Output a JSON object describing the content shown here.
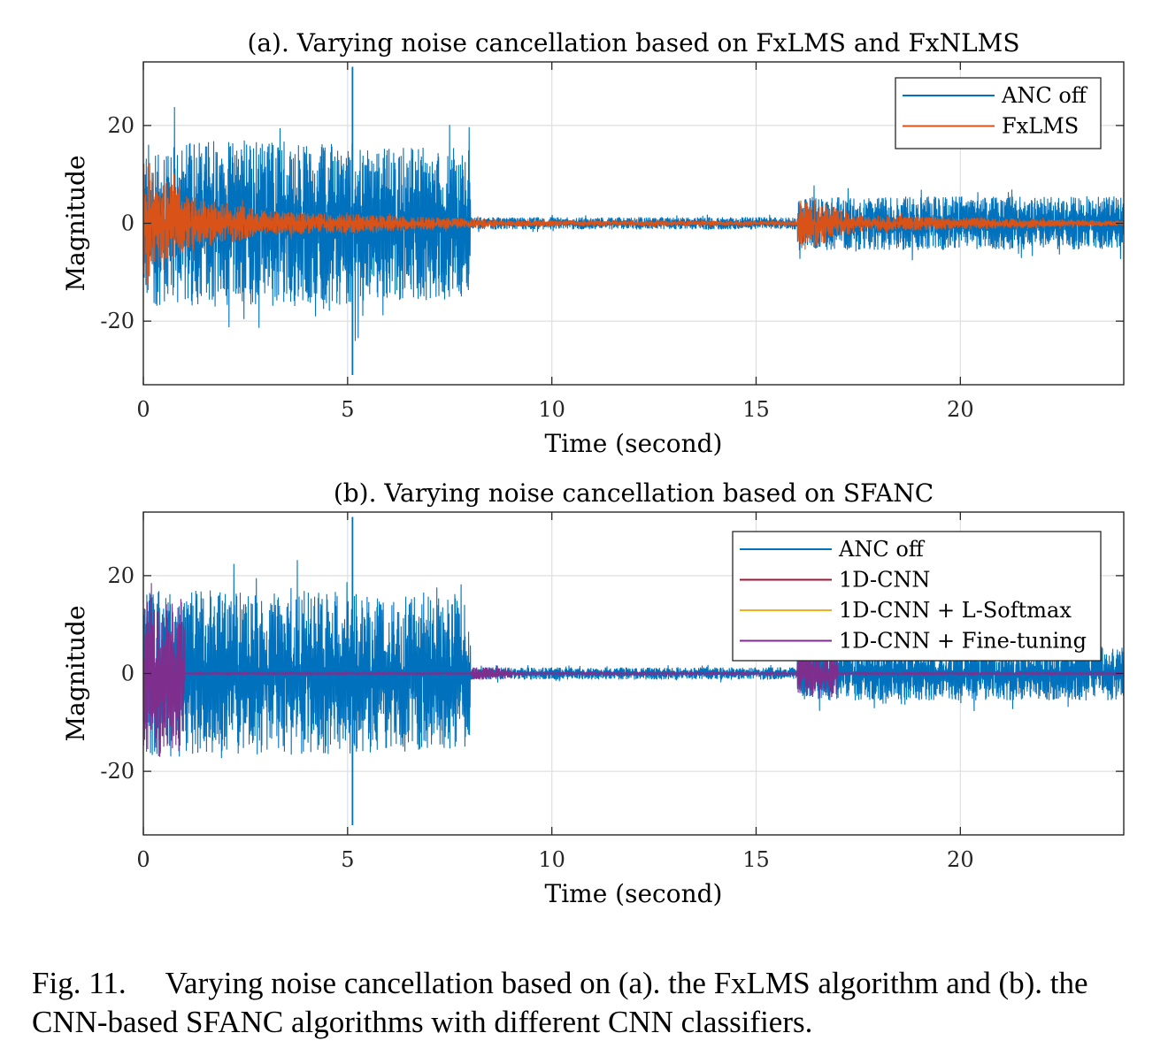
{
  "chart_data": [
    {
      "type": "line",
      "title": "(a). Varying noise cancellation based on FxLMS and FxNLMS",
      "xlabel": "Time (second)",
      "ylabel": "Magnitude",
      "xlim": [
        0,
        24
      ],
      "ylim": [
        -33,
        33
      ],
      "xticks": [
        0,
        5,
        10,
        15,
        20
      ],
      "xtick_labels": [
        "0",
        "5",
        "10",
        "15",
        "20"
      ],
      "yticks": [
        -20,
        0,
        20
      ],
      "ytick_labels": [
        "-20",
        "0",
        "20"
      ],
      "grid": true,
      "legend": "top-right",
      "series": [
        {
          "name": "ANC off",
          "color": "#0072BD",
          "envelope": [
            {
              "t": 0,
              "amp": 20
            },
            {
              "t": 4,
              "amp": 20
            },
            {
              "t": 8,
              "amp": 18
            },
            {
              "t": 8.01,
              "amp": 1.5
            },
            {
              "t": 16,
              "amp": 1.5
            },
            {
              "t": 16.01,
              "amp": 6.5
            },
            {
              "t": 24,
              "amp": 6.5
            }
          ]
        },
        {
          "name": "FxLMS",
          "color": "#D95319",
          "envelope": [
            {
              "t": 0,
              "amp": 16
            },
            {
              "t": 1,
              "amp": 7
            },
            {
              "t": 3,
              "amp": 3
            },
            {
              "t": 8,
              "amp": 1.2
            },
            {
              "t": 9,
              "amp": 0.8
            },
            {
              "t": 16,
              "amp": 0.6
            },
            {
              "t": 16.05,
              "amp": 7
            },
            {
              "t": 17.5,
              "amp": 2
            },
            {
              "t": 24,
              "amp": 0.6
            }
          ]
        }
      ]
    },
    {
      "type": "line",
      "title": "(b). Varying noise cancellation based on SFANC",
      "xlabel": "Time (second)",
      "ylabel": "Magnitude",
      "xlim": [
        0,
        24
      ],
      "ylim": [
        -33,
        33
      ],
      "xticks": [
        0,
        5,
        10,
        15,
        20
      ],
      "xtick_labels": [
        "0",
        "5",
        "10",
        "15",
        "20"
      ],
      "yticks": [
        -20,
        0,
        20
      ],
      "ytick_labels": [
        "-20",
        "0",
        "20"
      ],
      "grid": true,
      "legend": "top-right",
      "series": [
        {
          "name": "ANC off",
          "color": "#0072BD",
          "envelope": [
            {
              "t": 0,
              "amp": 20
            },
            {
              "t": 4,
              "amp": 20
            },
            {
              "t": 8,
              "amp": 18
            },
            {
              "t": 8.01,
              "amp": 1.5
            },
            {
              "t": 16,
              "amp": 1.5
            },
            {
              "t": 16.01,
              "amp": 6.5
            },
            {
              "t": 24,
              "amp": 6.5
            }
          ]
        },
        {
          "name": "1D-CNN",
          "color": "#A2142F"
        },
        {
          "name": "1D-CNN + L-Softmax",
          "color": "#EDB120"
        },
        {
          "name": "1D-CNN + Fine-tuning",
          "color": "#7E2F8E",
          "envelope": [
            {
              "t": 0,
              "amp": 19
            },
            {
              "t": 1,
              "amp": 19
            },
            {
              "t": 1.01,
              "amp": 0.25
            },
            {
              "t": 8,
              "amp": 0.25
            },
            {
              "t": 8.01,
              "amp": 1.5
            },
            {
              "t": 9,
              "amp": 1.5
            },
            {
              "t": 9.01,
              "amp": 0.2
            },
            {
              "t": 16,
              "amp": 0.2
            },
            {
              "t": 16.01,
              "amp": 6
            },
            {
              "t": 17,
              "amp": 6
            },
            {
              "t": 17.01,
              "amp": 0.2
            },
            {
              "t": 24,
              "amp": 0.2
            }
          ]
        }
      ]
    }
  ],
  "caption": {
    "label": "Fig. 11.",
    "text": "Varying noise cancellation based on (a). the FxLMS algorithm and (b). the CNN-based SFANC algorithms with different CNN classifiers."
  }
}
